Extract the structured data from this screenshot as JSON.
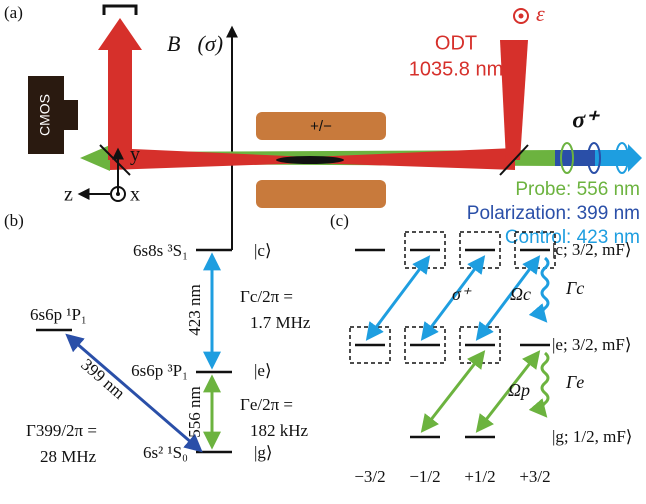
{
  "panel_a": {
    "label": "(a)",
    "camera": "CMOS",
    "field": "B⃗(σ)",
    "coil": "+/−",
    "odt": "ODT",
    "odt_wavelength": "1035.8 nm",
    "odt_polarization": "ε",
    "sigma": "σ⁺",
    "probe": "Probe: 556 nm",
    "polarization": "Polarization: 399 nm",
    "control": "Control: 423 nm",
    "axes": {
      "y": "y",
      "z": "z",
      "x": "x"
    }
  },
  "panel_b": {
    "label": "(b)",
    "levels": {
      "c": "6s8s ³S₁",
      "e": "6s6p ³P₁",
      "p": "6s6p ¹P₁",
      "g": "6s² ¹S₀"
    },
    "kets": {
      "c": "|c⟩",
      "e": "|e⟩",
      "g": "|g⟩"
    },
    "transitions": {
      "control": "423 nm",
      "probe": "556 nm",
      "blue": "399 nm"
    },
    "widths": {
      "c_label": "Γc/2π =",
      "c_value": "1.7 MHz",
      "e_label": "Γe/2π =",
      "e_value": "182 kHz",
      "p_label": "Γ399/2π =",
      "p_value": "28 MHz"
    }
  },
  "panel_c": {
    "label": "(c)",
    "kets": {
      "c": "|c; 3/2, mF⟩",
      "e": "|e; 3/2, mF⟩",
      "g": "|g; 1/2, mF⟩"
    },
    "sigma": "σ⁺",
    "omega_c": "Ωc",
    "omega_p": "Ωp",
    "gamma_c": "Γc",
    "gamma_e": "Γe",
    "mf": [
      "−3/2",
      "−1/2",
      "+1/2",
      "+3/2"
    ]
  }
}
